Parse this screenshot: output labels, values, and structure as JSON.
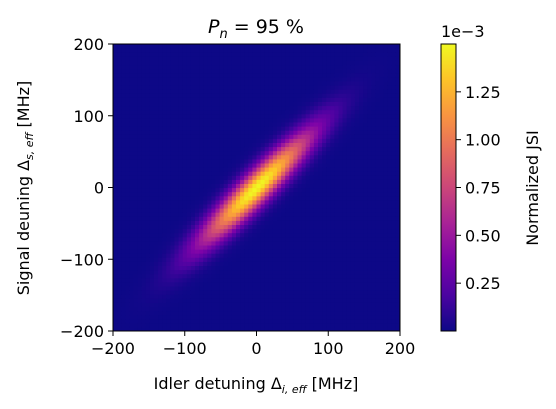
{
  "chart_data": {
    "type": "heatmap",
    "title_prefix": "P",
    "title_sub": "n",
    "title_rest": " = 95 %",
    "xlabel_main": "Idler detuning Δ",
    "xlabel_sub": "i, eff",
    "xlabel_unit": " [MHz]",
    "ylabel_main": "Signal deuning Δ",
    "ylabel_sub": "s, eff",
    "ylabel_unit": " [MHz]",
    "xlim": [
      -200,
      200
    ],
    "ylim": [
      -200,
      200
    ],
    "xticks": [
      -200,
      -100,
      0,
      100,
      200
    ],
    "yticks": [
      -200,
      -100,
      0,
      100,
      200
    ],
    "xtick_labels": [
      "−200",
      "−100",
      "0",
      "100",
      "200"
    ],
    "ytick_labels": [
      "−200",
      "−100",
      "0",
      "100",
      "200"
    ],
    "colormap": "plasma",
    "colorbar": {
      "label": "Normalized JSI",
      "offset_text": "1e−3",
      "range": [
        0.0,
        1.5
      ],
      "ticks": [
        0.25,
        0.5,
        0.75,
        1.0,
        1.25
      ],
      "tick_labels": [
        "0.25",
        "0.50",
        "0.75",
        "1.00",
        "1.25"
      ]
    },
    "distribution": {
      "peak_value": 1.5,
      "center": [
        0,
        0
      ],
      "sigma_along_diagonal": 75,
      "sigma_across_diagonal": 14,
      "angle_deg": 45
    }
  }
}
